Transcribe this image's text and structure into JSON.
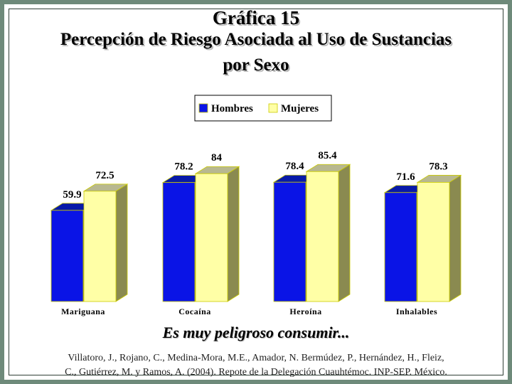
{
  "title": {
    "line1": "Gráfica 15",
    "line2": "Percepción de Riesgo Asociada al Uso de Sustancias",
    "line3": "por Sexo"
  },
  "subtitle": "Es muy peligroso consumir...",
  "citation": {
    "line1": "Villatoro, J., Rojano, C., Medina-Mora, M.E., Amador, N. Bermúdez, P., Hernández, H., Fleiz,",
    "line2": "C., Gutiérrez, M. y Ramos, A. (2004). Repote de la Delegación Cuauhtémoc. INP-SEP. México."
  },
  "chart_data": {
    "type": "bar",
    "title": "Percepción de Riesgo Asociada al Uso de Sustancias por Sexo",
    "categories": [
      "Mariguana",
      "Cocaína",
      "Heroína",
      "Inhalables"
    ],
    "series": [
      {
        "name": "Hombres",
        "values": [
          59.9,
          78.2,
          78.4,
          71.6
        ],
        "color": "#0a14e6"
      },
      {
        "name": "Mujeres",
        "values": [
          72.5,
          84,
          85.4,
          78.3
        ],
        "color": "#ffffa6"
      }
    ],
    "data_labels": [
      [
        "59.9",
        "78.2",
        "78.4",
        "71.6"
      ],
      [
        "72.5",
        "84",
        "85.4",
        "78.3"
      ]
    ],
    "ylim": [
      0,
      100
    ],
    "grid": false,
    "legend": "top-center",
    "style": "3d-columns"
  }
}
